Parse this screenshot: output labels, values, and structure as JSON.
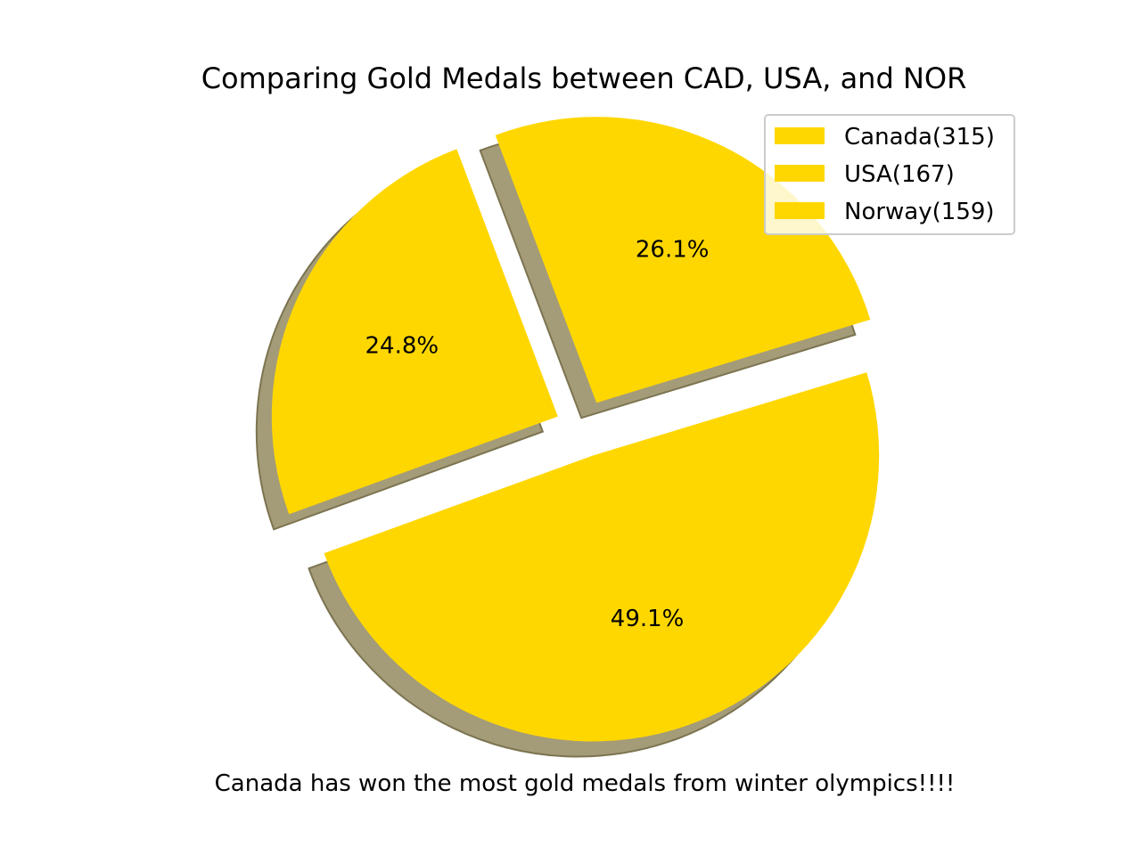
{
  "chart_data": {
    "type": "pie",
    "title": "Comparing Gold Medals between CAD, USA, and NOR",
    "caption": "Canada has won the most gold medals from winter olympics!!!!",
    "slices": [
      {
        "label": "Canada(315)",
        "value": 315,
        "pct_label": "49.1%",
        "explode": 0.1
      },
      {
        "label": "USA(167)",
        "value": 167,
        "pct_label": "26.1%",
        "explode": 0.1
      },
      {
        "label": "Norway(159)",
        "value": 159,
        "pct_label": "24.8%",
        "explode": 0.1
      }
    ],
    "start_angle_deg": 200,
    "shadow": true,
    "legend_position": "top-right",
    "colors": {
      "slice": "#FFD700",
      "shadow": "#A49C78",
      "shadow_edge": "#7C7450",
      "legend_border": "#CCCCCC"
    }
  }
}
